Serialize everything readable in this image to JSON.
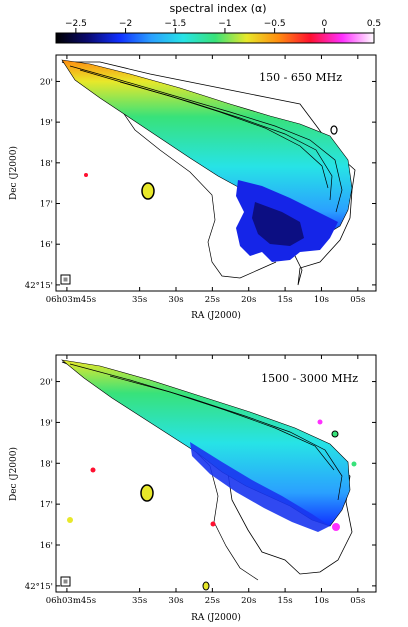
{
  "colorbar": {
    "label": "spectral index (α)",
    "ticks": [
      "−2.5",
      "−2",
      "−1.5",
      "−1",
      "−0.5",
      "0",
      "0.5"
    ],
    "tick_values": [
      -2.5,
      -2.0,
      -1.5,
      -1.0,
      -0.5,
      0.0,
      0.5
    ],
    "range": [
      -2.7,
      0.5
    ],
    "colors": [
      "#000000",
      "#0a0a70",
      "#1030ff",
      "#2aa0ff",
      "#27e3e6",
      "#38e27a",
      "#e8e82a",
      "#ff8c10",
      "#ff1030",
      "#ff30ff",
      "#ffffff"
    ]
  },
  "chart_data": [
    {
      "type": "heatmap",
      "panel_label": "150 - 650 MHz",
      "xlabel": "RA (J2000)",
      "ylabel": "Dec (J2000)",
      "x_ticks": [
        "06h03m45s",
        "35s",
        "30s",
        "25s",
        "20s",
        "15s",
        "10s",
        "05s"
      ],
      "y_ticks": [
        "42°15'",
        "16'",
        "17'",
        "18'",
        "19'",
        "20'"
      ],
      "x_tick_values_sec": [
        45,
        35,
        30,
        25,
        20,
        15,
        10,
        5
      ],
      "y_tick_values_arcmin": [
        15,
        16,
        17,
        18,
        19,
        20
      ],
      "xlim_sec": [
        46.5,
        2.5
      ],
      "ylim_arcmin": [
        14.85,
        20.65
      ],
      "alpha_range": [
        -2.5,
        -0.3
      ],
      "description_values": {
        "ridge_alpha": -0.7,
        "tail_alpha": -1.1,
        "southern_lobe_alpha": -1.9
      }
    },
    {
      "type": "heatmap",
      "panel_label": "1500 - 3000 MHz",
      "xlabel": "RA (J2000)",
      "ylabel": "Dec (J2000)",
      "x_ticks": [
        "06h03m45s",
        "35s",
        "30s",
        "25s",
        "20s",
        "15s",
        "10s",
        "05s"
      ],
      "y_ticks": [
        "42°15'",
        "16'",
        "17'",
        "18'",
        "19'",
        "20'"
      ],
      "x_tick_values_sec": [
        45,
        35,
        30,
        25,
        20,
        15,
        10,
        5
      ],
      "y_tick_values_arcmin": [
        15,
        16,
        17,
        18,
        19,
        20
      ],
      "xlim_sec": [
        46.5,
        2.5
      ],
      "ylim_arcmin": [
        14.85,
        20.65
      ],
      "alpha_range": [
        -2.5,
        0.3
      ],
      "description_values": {
        "ridge_alpha": -0.8,
        "tail_alpha": -1.2,
        "southern_edge_alpha": -1.8
      }
    }
  ]
}
